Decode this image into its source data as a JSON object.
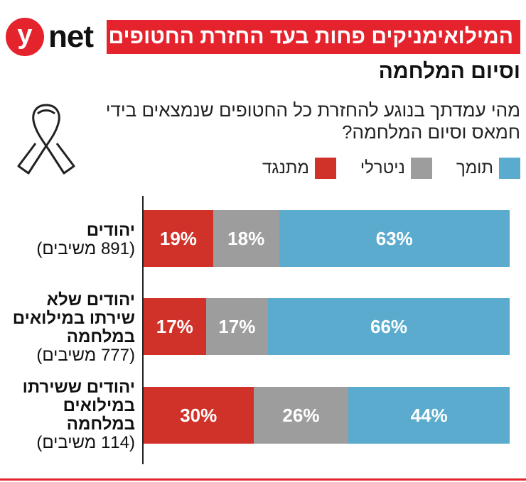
{
  "logo": {
    "mark": "y",
    "text": "net"
  },
  "title": {
    "line1": "המילואימניקים פחות בעד החזרת החטופים",
    "line2": "וסיום המלחמה"
  },
  "question": "מהי עמדתך בנוגע להחזרת כל החטופים שנמצאים בידי חמאס וסיום המלחמה?",
  "legend": [
    {
      "label": "תומך",
      "color": "#5aabce"
    },
    {
      "label": "ניטרלי",
      "color": "#9d9d9d"
    },
    {
      "label": "מתנגד",
      "color": "#d0322a"
    }
  ],
  "chart_data": {
    "type": "bar",
    "orientation": "horizontal",
    "stacked": true,
    "categories": [
      {
        "name": "יהודים",
        "respondents": "(891 משיבים)"
      },
      {
        "name": "יהודים שלא שירתו במילואים במלחמה",
        "respondents": "(777 משיבים)"
      },
      {
        "name": "יהודים ששירתו במילואים במלחמה",
        "respondents": "(114 משיבים)"
      }
    ],
    "series": [
      {
        "name": "מתנגד",
        "color": "#d0322a",
        "values": [
          19,
          17,
          30
        ]
      },
      {
        "name": "ניטרלי",
        "color": "#9d9d9d",
        "values": [
          18,
          17,
          26
        ]
      },
      {
        "name": "תומך",
        "color": "#5aabce",
        "values": [
          63,
          66,
          44
        ]
      }
    ],
    "value_suffix": "%",
    "xlim": [
      0,
      100
    ]
  }
}
